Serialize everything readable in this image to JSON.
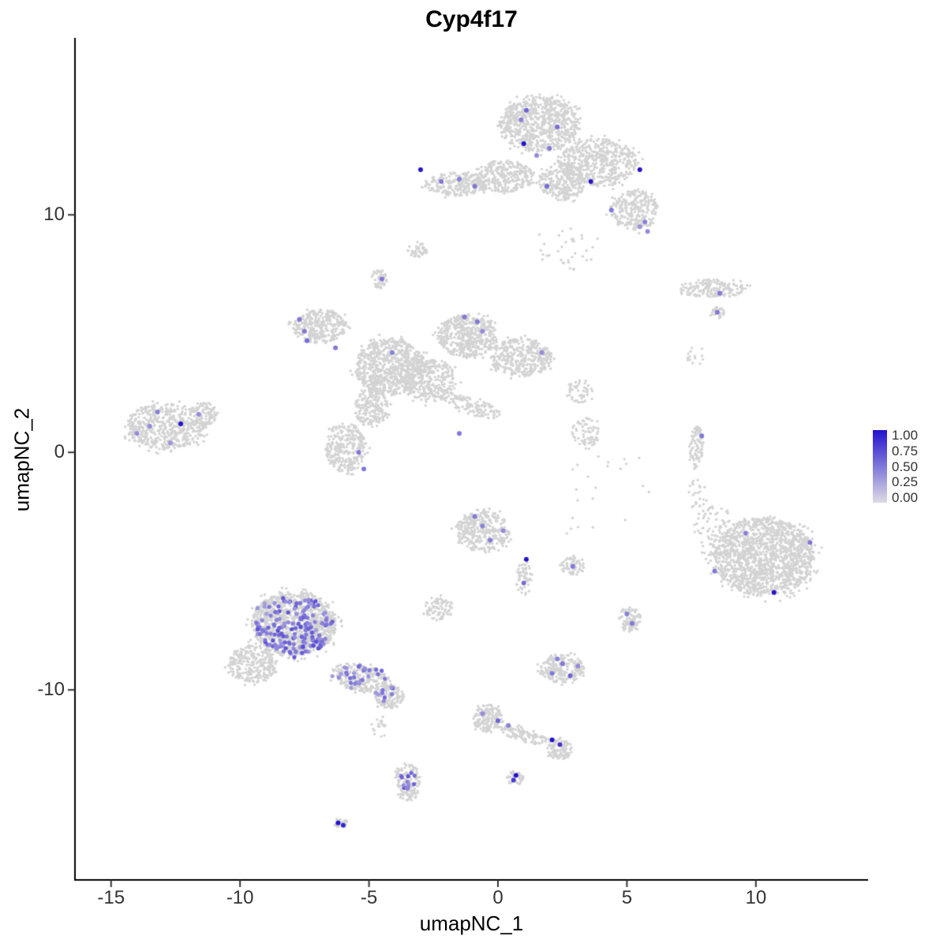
{
  "chart_data": {
    "type": "scatter",
    "title": "Cyp4f17",
    "xlabel": "umapNC_1",
    "ylabel": "umapNC_2",
    "xlim": [
      -16.4,
      14.35
    ],
    "ylim": [
      -18.0,
      17.45
    ],
    "x_ticks": [
      "-15",
      "-10",
      "-5",
      "0",
      "5",
      "10"
    ],
    "x_tick_values": [
      -15,
      -10,
      -5,
      0,
      5,
      10
    ],
    "y_ticks": [
      "10",
      "0",
      "-10"
    ],
    "y_tick_values": [
      10,
      0,
      -10
    ],
    "grid": false,
    "background_point_color": "#D3D3D3",
    "legend": {
      "position": "right",
      "ticks": [
        "1.00",
        "0.75",
        "0.50",
        "0.25",
        "0.00"
      ],
      "low_color": "#DCDCE4",
      "high_color": "#2313CE"
    },
    "background_clusters": [
      {
        "x": 1.6,
        "y": 13.8,
        "sx": 1.55,
        "sy": 1.15,
        "rot": 0,
        "n": 750
      },
      {
        "x": 3.9,
        "y": 12.2,
        "sx": 1.5,
        "sy": 1.0,
        "rot": 0,
        "n": 520
      },
      {
        "x": 5.3,
        "y": 10.2,
        "sx": 0.95,
        "sy": 0.85,
        "rot": 0,
        "n": 260
      },
      {
        "x": -1.6,
        "y": 11.3,
        "sx": 1.25,
        "sy": 0.5,
        "rot": 0,
        "n": 230
      },
      {
        "x": 0.2,
        "y": 11.6,
        "sx": 1.2,
        "sy": 0.65,
        "rot": 0,
        "n": 300
      },
      {
        "x": 2.5,
        "y": 11.4,
        "sx": 0.9,
        "sy": 0.8,
        "rot": 0,
        "n": 260
      },
      {
        "x": 2.6,
        "y": 8.6,
        "sx": 1.3,
        "sy": 1.0,
        "rot": 0,
        "n": 35
      },
      {
        "x": -3.1,
        "y": 8.5,
        "sx": 0.4,
        "sy": 0.3,
        "rot": 0,
        "n": 45
      },
      {
        "x": -4.6,
        "y": 7.3,
        "sx": 0.3,
        "sy": 0.4,
        "rot": 0,
        "n": 45
      },
      {
        "x": -6.9,
        "y": 5.3,
        "sx": 1.05,
        "sy": 0.7,
        "rot": 0,
        "n": 330
      },
      {
        "x": -4.2,
        "y": 3.6,
        "sx": 1.35,
        "sy": 1.2,
        "rot": 0,
        "n": 750
      },
      {
        "x": -1.2,
        "y": 4.9,
        "sx": 1.15,
        "sy": 0.9,
        "rot": 0,
        "n": 480
      },
      {
        "x": 0.9,
        "y": 4.0,
        "sx": 1.2,
        "sy": 0.8,
        "rot": 0,
        "n": 380
      },
      {
        "x": -2.6,
        "y": 3.0,
        "sx": 1.0,
        "sy": 0.9,
        "rot": 0,
        "n": 320
      },
      {
        "x": -5.9,
        "y": 0.2,
        "sx": 0.8,
        "sy": 1.05,
        "rot": 0,
        "n": 300
      },
      {
        "x": -4.9,
        "y": 1.9,
        "sx": 0.65,
        "sy": 0.85,
        "rot": 0,
        "n": 190
      },
      {
        "x": -0.9,
        "y": 1.9,
        "sx": 1.1,
        "sy": 0.35,
        "rot": -20,
        "n": 110
      },
      {
        "x": -12.9,
        "y": 1.1,
        "sx": 1.5,
        "sy": 1.0,
        "rot": 0,
        "n": 550
      },
      {
        "x": -11.4,
        "y": 1.6,
        "sx": 0.55,
        "sy": 0.5,
        "rot": 0,
        "n": 90
      },
      {
        "x": -0.6,
        "y": -3.3,
        "sx": 1.05,
        "sy": 0.85,
        "rot": 0,
        "n": 330
      },
      {
        "x": -2.3,
        "y": -6.6,
        "sx": 0.55,
        "sy": 0.5,
        "rot": 0,
        "n": 85
      },
      {
        "x": 1.0,
        "y": -5.3,
        "sx": 0.3,
        "sy": 0.75,
        "rot": 0,
        "n": 55
      },
      {
        "x": 7.7,
        "y": 0.2,
        "sx": 0.28,
        "sy": 0.95,
        "rot": 0,
        "n": 90
      },
      {
        "x": 7.8,
        "y": -1.8,
        "sx": 0.45,
        "sy": 0.7,
        "rot": 0,
        "n": 25
      },
      {
        "x": 10.3,
        "y": -4.4,
        "sx": 1.95,
        "sy": 1.65,
        "rot": 0,
        "n": 1500
      },
      {
        "x": 8.4,
        "y": -3.3,
        "sx": 0.8,
        "sy": 1.1,
        "rot": 0,
        "n": 90
      },
      {
        "x": 8.3,
        "y": 6.9,
        "sx": 1.35,
        "sy": 0.38,
        "rot": 0,
        "n": 170
      },
      {
        "x": 8.5,
        "y": 5.9,
        "sx": 0.3,
        "sy": 0.22,
        "rot": 0,
        "n": 25
      },
      {
        "x": -7.9,
        "y": -7.2,
        "sx": 1.65,
        "sy": 1.35,
        "rot": 0,
        "n": 1150
      },
      {
        "x": -9.5,
        "y": -8.9,
        "sx": 0.95,
        "sy": 0.8,
        "rot": 0,
        "n": 280
      },
      {
        "x": -5.3,
        "y": -9.5,
        "sx": 1.2,
        "sy": 0.55,
        "rot": -15,
        "n": 260
      },
      {
        "x": -4.2,
        "y": -10.3,
        "sx": 0.55,
        "sy": 0.5,
        "rot": 0,
        "n": 120
      },
      {
        "x": -4.6,
        "y": -11.6,
        "sx": 0.3,
        "sy": 0.6,
        "rot": 0,
        "n": 18
      },
      {
        "x": -3.5,
        "y": -13.9,
        "sx": 0.5,
        "sy": 0.8,
        "rot": 0,
        "n": 140
      },
      {
        "x": -6.1,
        "y": -15.6,
        "sx": 0.28,
        "sy": 0.2,
        "rot": 0,
        "n": 25
      },
      {
        "x": -0.4,
        "y": -11.2,
        "sx": 0.55,
        "sy": 0.6,
        "rot": 0,
        "n": 150
      },
      {
        "x": 1.0,
        "y": -11.9,
        "sx": 0.95,
        "sy": 0.3,
        "rot": -18,
        "n": 100
      },
      {
        "x": 2.4,
        "y": -12.5,
        "sx": 0.5,
        "sy": 0.42,
        "rot": 0,
        "n": 100
      },
      {
        "x": 2.5,
        "y": -9.1,
        "sx": 0.85,
        "sy": 0.6,
        "rot": 0,
        "n": 230
      },
      {
        "x": 5.1,
        "y": -7.0,
        "sx": 0.45,
        "sy": 0.5,
        "rot": 0,
        "n": 90
      },
      {
        "x": 2.9,
        "y": -4.8,
        "sx": 0.45,
        "sy": 0.38,
        "rot": 0,
        "n": 60
      },
      {
        "x": 0.7,
        "y": -13.7,
        "sx": 0.32,
        "sy": 0.3,
        "rot": 0,
        "n": 45
      },
      {
        "x": 3.4,
        "y": 0.8,
        "sx": 0.55,
        "sy": 0.65,
        "rot": 0,
        "n": 70
      },
      {
        "x": 3.2,
        "y": 2.6,
        "sx": 0.5,
        "sy": 0.5,
        "rot": 0,
        "n": 50
      },
      {
        "x": 7.7,
        "y": 4.1,
        "sx": 0.45,
        "sy": 0.4,
        "rot": 0,
        "n": 14
      },
      {
        "x": 3.8,
        "y": -1.6,
        "sx": 2.3,
        "sy": 2.0,
        "rot": 0,
        "n": 22
      }
    ],
    "expression_patches": [
      {
        "x": -7.9,
        "y": -7.3,
        "sx": 1.5,
        "sy": 1.25,
        "n": 160,
        "vmin": 0.3,
        "vmax": 0.72
      },
      {
        "x": -5.4,
        "y": -9.4,
        "sx": 1.1,
        "sy": 0.45,
        "n": 28,
        "vmin": 0.3,
        "vmax": 0.6
      },
      {
        "x": -3.5,
        "y": -13.8,
        "sx": 0.28,
        "sy": 0.55,
        "n": 14,
        "vmin": 0.35,
        "vmax": 0.7
      },
      {
        "x": -4.3,
        "y": -10.2,
        "sx": 0.4,
        "sy": 0.35,
        "n": 10,
        "vmin": 0.3,
        "vmax": 0.6
      }
    ],
    "highlight_points_xyv": [
      [
        1.1,
        14.4,
        0.6
      ],
      [
        2.3,
        13.7,
        0.55
      ],
      [
        1.0,
        13.0,
        1.0
      ],
      [
        2.0,
        12.8,
        0.5
      ],
      [
        0.9,
        14.0,
        0.45
      ],
      [
        1.5,
        12.5,
        0.4
      ],
      [
        -3.0,
        11.9,
        1.0
      ],
      [
        -2.2,
        11.4,
        0.5
      ],
      [
        -1.5,
        11.5,
        0.45
      ],
      [
        -0.9,
        11.2,
        0.5
      ],
      [
        1.9,
        11.2,
        0.55
      ],
      [
        3.6,
        11.4,
        1.0
      ],
      [
        5.5,
        11.9,
        1.0
      ],
      [
        4.4,
        10.2,
        0.5
      ],
      [
        5.7,
        9.7,
        0.45
      ],
      [
        5.8,
        9.3,
        0.4
      ],
      [
        5.5,
        9.5,
        0.35
      ],
      [
        -4.5,
        7.3,
        0.5
      ],
      [
        -7.7,
        5.6,
        0.5
      ],
      [
        -7.5,
        5.1,
        0.5
      ],
      [
        -7.4,
        4.7,
        0.55
      ],
      [
        -6.3,
        4.4,
        0.5
      ],
      [
        -4.1,
        4.2,
        0.45
      ],
      [
        -1.3,
        5.7,
        0.5
      ],
      [
        -0.8,
        5.5,
        0.5
      ],
      [
        -0.6,
        5.1,
        0.4
      ],
      [
        1.7,
        4.2,
        0.4
      ],
      [
        -1.5,
        0.8,
        0.5
      ],
      [
        -5.4,
        0.0,
        0.5
      ],
      [
        -5.2,
        -0.7,
        0.5
      ],
      [
        -13.2,
        1.7,
        0.45
      ],
      [
        -12.3,
        1.2,
        1.0
      ],
      [
        -13.5,
        1.1,
        0.4
      ],
      [
        -11.6,
        1.6,
        0.4
      ],
      [
        -14.0,
        0.8,
        0.4
      ],
      [
        -12.7,
        0.4,
        0.35
      ],
      [
        8.6,
        6.7,
        0.5
      ],
      [
        8.5,
        5.9,
        0.5
      ],
      [
        7.9,
        0.7,
        0.5
      ],
      [
        9.6,
        -3.4,
        0.45
      ],
      [
        12.1,
        -3.8,
        0.5
      ],
      [
        8.4,
        -5.0,
        0.5
      ],
      [
        10.7,
        -5.9,
        1.0
      ],
      [
        -0.9,
        -2.7,
        0.5
      ],
      [
        -0.6,
        -3.1,
        0.45
      ],
      [
        -0.3,
        -3.7,
        0.5
      ],
      [
        0.2,
        -3.3,
        0.4
      ],
      [
        1.1,
        -4.5,
        1.0
      ],
      [
        1.0,
        -5.5,
        0.55
      ],
      [
        2.9,
        -4.8,
        0.5
      ],
      [
        5.0,
        -6.8,
        0.45
      ],
      [
        5.2,
        -7.2,
        0.5
      ],
      [
        2.5,
        -8.9,
        0.5
      ],
      [
        2.1,
        -9.3,
        0.5
      ],
      [
        2.8,
        -9.4,
        0.6
      ],
      [
        3.1,
        -9.0,
        0.4
      ],
      [
        2.3,
        -8.7,
        0.45
      ],
      [
        0.0,
        -11.3,
        0.6
      ],
      [
        0.4,
        -11.5,
        0.45
      ],
      [
        -0.6,
        -11.0,
        0.4
      ],
      [
        2.1,
        -12.1,
        1.0
      ],
      [
        2.4,
        -12.3,
        0.85
      ],
      [
        0.7,
        -13.6,
        1.0
      ],
      [
        0.6,
        -13.8,
        0.8
      ],
      [
        -6.2,
        -15.6,
        1.0
      ],
      [
        -6.0,
        -15.7,
        0.9
      ]
    ]
  }
}
